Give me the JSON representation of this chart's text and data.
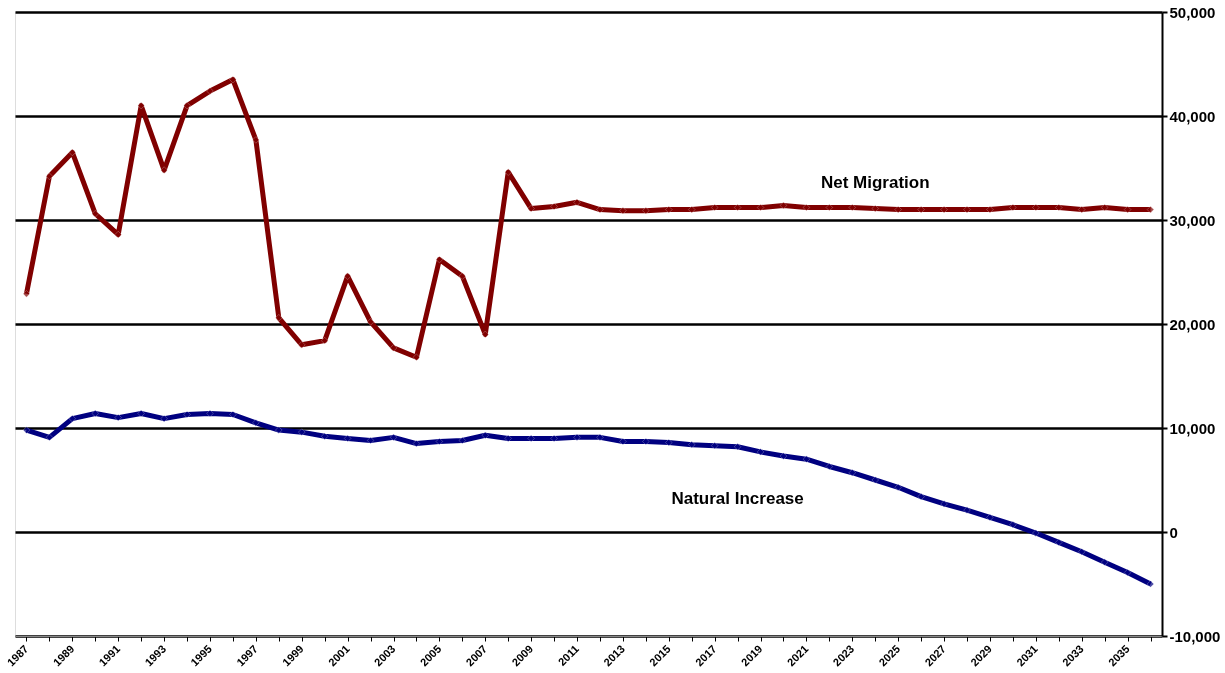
{
  "chart_data": {
    "type": "line",
    "categories": [
      "1987",
      null,
      "1989",
      null,
      "1991",
      null,
      "1993",
      null,
      "1995",
      null,
      "1997",
      null,
      "1999",
      null,
      "2001",
      null,
      "2003",
      null,
      "2005",
      null,
      "2007",
      null,
      "2009",
      null,
      "2011",
      null,
      "2013",
      null,
      "2015",
      null,
      "2017",
      null,
      "2019",
      null,
      "2021",
      null,
      "2023",
      null,
      "2025",
      null,
      "2027",
      null,
      "2029",
      null,
      "2031",
      null,
      "2033",
      null,
      "2035",
      null
    ],
    "series": [
      {
        "name": "Net Migration",
        "color": "#800000",
        "values": [
          22900,
          34200,
          36500,
          30600,
          28600,
          41000,
          34800,
          41000,
          42400,
          43500,
          37700,
          20600,
          18000,
          18400,
          24600,
          20200,
          17700,
          16800,
          26200,
          24600,
          19000,
          34600,
          31100,
          31300,
          31700,
          31000,
          30900,
          30900,
          31000,
          31000,
          31200,
          31200,
          31200,
          31400,
          31200,
          31200,
          31200,
          31100,
          31000,
          31000,
          31000,
          31000,
          31000,
          31200,
          31200,
          31200,
          31000,
          31200,
          31000,
          31000
        ]
      },
      {
        "name": "Natural Increase",
        "color": "#000080",
        "values": [
          9800,
          9100,
          10900,
          11400,
          11000,
          11400,
          10900,
          11300,
          11400,
          11300,
          10500,
          9800,
          9600,
          9200,
          9000,
          8800,
          9100,
          8500,
          8700,
          8800,
          9300,
          9000,
          9000,
          9000,
          9100,
          9100,
          8700,
          8700,
          8600,
          8400,
          8300,
          8200,
          7700,
          7300,
          7000,
          6300,
          5700,
          5000,
          4300,
          3400,
          2700,
          2100,
          1400,
          700,
          -100,
          -1000,
          -1900,
          -2900,
          -3900,
          -5000
        ]
      }
    ],
    "ylim": [
      -10000,
      50000
    ],
    "yticks": [
      {
        "value": -10000,
        "label": "-10,000"
      },
      0,
      {
        "value": 10000,
        "label": "10,000"
      },
      {
        "value": 20000,
        "label": "20,000"
      },
      {
        "value": 30000,
        "label": "30,000"
      },
      {
        "value": 40000,
        "label": "40,000"
      },
      {
        "value": 50000,
        "label": "50,000"
      }
    ],
    "grid": "y",
    "marker": "diamond",
    "line_style": "solid"
  }
}
